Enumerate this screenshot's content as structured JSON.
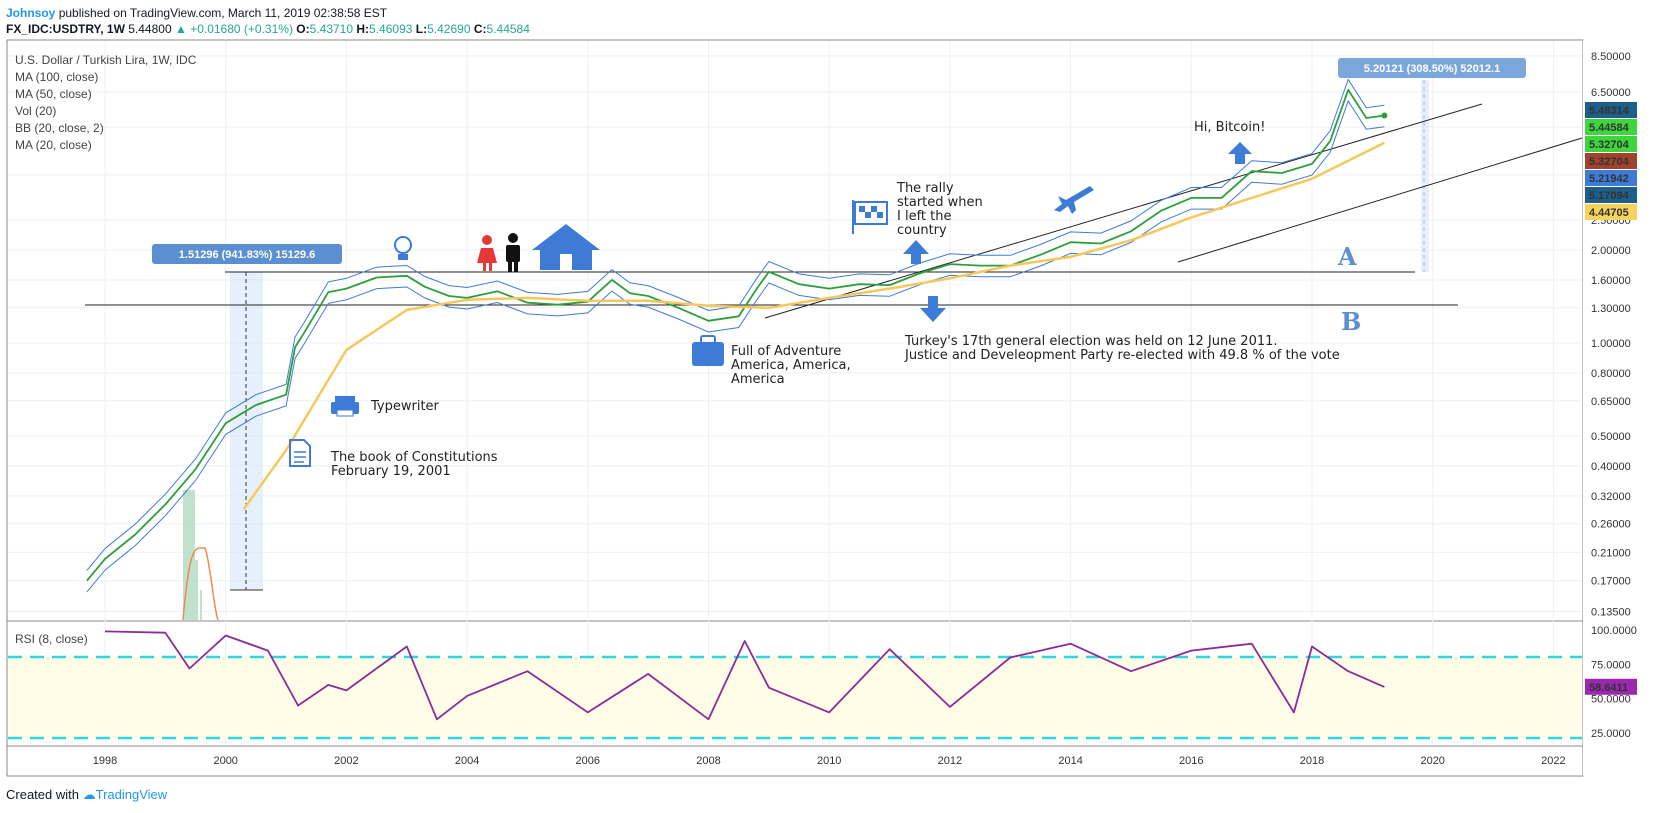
{
  "header": {
    "author": "Johnsoy",
    "published_text": "published on TradingView.com, March 11, 2019 02:38:58 EST",
    "symbol": "FX_IDC:USDTRY, 1W",
    "price": "5.44800",
    "change": "▲ +0.01680 (+0.31%)",
    "o_label": "O:",
    "o": "5.43710",
    "h_label": "H:",
    "h": "5.46093",
    "l_label": "L:",
    "l": "5.42690",
    "c_label": "C:",
    "c": "5.44584"
  },
  "legend": {
    "title": "U.S. Dollar / Turkish Lira, 1W, IDC",
    "indicators": [
      "MA (100, close)",
      "MA (50, close)",
      "Vol (20)",
      "BB (20, close, 2)",
      "MA (20, close)"
    ],
    "rsi_title": "RSI (8, close)"
  },
  "annotations": {
    "measure1": "1.51296 (941.83%) 15129.6",
    "measure2": "5.20121 (308.50%) 52012.1",
    "typewriter": "Typewriter",
    "constitution_1": "The book of Constitutions",
    "constitution_2": "February 19, 2001",
    "adventure_1": "Full of Adventure",
    "adventure_2": "America, America,",
    "adventure_3": "America",
    "rally_1": "The rally",
    "rally_2": "started when",
    "rally_3": "I left the",
    "rally_4": "country",
    "election_1": "Turkey's 17th general election was held on 12 June 2011.",
    "election_2": "Justice and Develeopment Party re-elected with 49.8 % of the vote",
    "bitcoin": "Hi, Bitcoin!",
    "line_a": "A",
    "line_b": "B"
  },
  "price_tags": [
    {
      "value": "5.48314",
      "color": "#1e5f8a"
    },
    {
      "value": "5.44584",
      "color": "#3dd63d"
    },
    {
      "value": "5.32704",
      "color": "#3dd63d"
    },
    {
      "value": "5.32704",
      "color": "#a0432c"
    },
    {
      "value": "5.21942",
      "color": "#3d7bd6"
    },
    {
      "value": "5.17094",
      "color": "#1e5f8a"
    },
    {
      "value": "4.44705",
      "color": "#f6d35c"
    }
  ],
  "rsi_tag": {
    "value": "58.6411",
    "color": "#9c27b0"
  },
  "footer": {
    "created_with": "Created with",
    "brand": "TradingView"
  },
  "chart_data": [
    {
      "type": "line",
      "title": "U.S. Dollar / Turkish Lira, 1W, IDC",
      "scale": "log",
      "x_ticks": [
        "1998",
        "2000",
        "2002",
        "2004",
        "2006",
        "2008",
        "2010",
        "2012",
        "2014",
        "2016",
        "2018",
        "2020",
        "2022"
      ],
      "y_ticks": [
        "8.50000",
        "6.50000",
        "5.00000",
        "3.50000",
        "2.50000",
        "2.00000",
        "1.60000",
        "1.30000",
        "1.00000",
        "0.80000",
        "0.65000",
        "0.50000",
        "0.40000",
        "0.32000",
        "0.26000",
        "0.21000",
        "0.17000",
        "0.13500"
      ],
      "series": [
        {
          "name": "USDTRY close",
          "x": [
            1997.7,
            1998,
            1998.5,
            1999,
            1999.5,
            2000,
            2000.5,
            2001,
            2001.15,
            2001.3,
            2001.7,
            2002,
            2002.5,
            2003,
            2003.3,
            2003.7,
            2004,
            2004.5,
            2005,
            2005.5,
            2006,
            2006.4,
            2006.7,
            2007,
            2007.5,
            2008,
            2008.5,
            2008.8,
            2009,
            2009.5,
            2010,
            2010.5,
            2011,
            2011.5,
            2012,
            2012.5,
            2013,
            2013.5,
            2014,
            2014.5,
            2015,
            2015.5,
            2016,
            2016.5,
            2017,
            2017.5,
            2018,
            2018.3,
            2018.6,
            2018.9,
            2019.2
          ],
          "values": [
            0.17,
            0.2,
            0.24,
            0.3,
            0.39,
            0.55,
            0.63,
            0.68,
            0.97,
            1.08,
            1.46,
            1.5,
            1.63,
            1.65,
            1.52,
            1.42,
            1.4,
            1.47,
            1.35,
            1.33,
            1.36,
            1.6,
            1.45,
            1.42,
            1.3,
            1.18,
            1.22,
            1.5,
            1.7,
            1.55,
            1.5,
            1.55,
            1.54,
            1.68,
            1.8,
            1.78,
            1.78,
            1.93,
            2.12,
            2.1,
            2.3,
            2.68,
            2.95,
            2.95,
            3.6,
            3.55,
            3.8,
            4.5,
            6.6,
            5.35,
            5.45
          ]
        },
        {
          "name": "MA (100, close)",
          "x": [
            2000.3,
            2001,
            2002,
            2003,
            2004,
            2005,
            2006,
            2007,
            2008,
            2009,
            2010,
            2011,
            2012,
            2013,
            2014,
            2015,
            2016,
            2017,
            2018,
            2019.2
          ],
          "values": [
            0.29,
            0.45,
            0.95,
            1.28,
            1.38,
            1.4,
            1.37,
            1.37,
            1.32,
            1.3,
            1.4,
            1.5,
            1.62,
            1.78,
            1.9,
            2.15,
            2.55,
            2.95,
            3.4,
            4.45
          ]
        },
        {
          "name": "RSI (8, close)",
          "x": [
            1998,
            1999,
            1999.4,
            2000,
            2000.7,
            2001.2,
            2001.7,
            2002,
            2003,
            2003.5,
            2004,
            2005,
            2006,
            2007,
            2008,
            2008.6,
            2009,
            2010,
            2011,
            2012,
            2013,
            2014,
            2015,
            2016,
            2017,
            2017.7,
            2018,
            2018.6,
            2019.2
          ],
          "values": [
            99,
            98,
            72,
            96,
            85,
            45,
            60,
            56,
            88,
            35,
            52,
            70,
            40,
            68,
            35,
            92,
            58,
            40,
            86,
            44,
            80,
            90,
            70,
            85,
            90,
            40,
            88,
            70,
            58.6
          ]
        }
      ],
      "rsi_y_ticks": [
        "100.0000",
        "75.0000",
        "50.0000",
        "25.0000"
      ],
      "rsi_bands": [
        80,
        20
      ]
    }
  ]
}
